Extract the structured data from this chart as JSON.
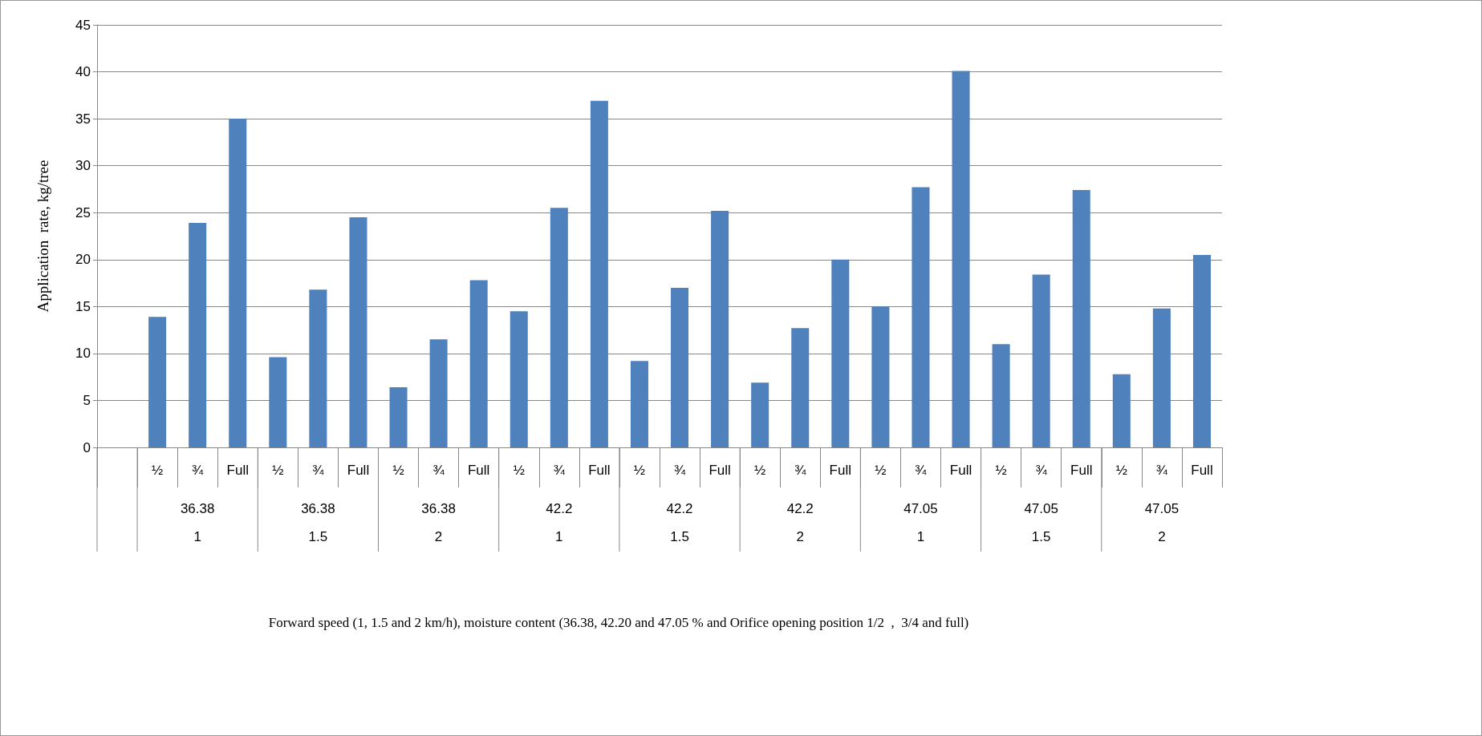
{
  "chart_data": {
    "type": "bar",
    "ylabel": "Application  rate, kg/tree",
    "categories": [
      null,
      "½",
      "¾",
      "Full",
      "½",
      "¾",
      "Full",
      "½",
      "¾",
      "Full",
      "½",
      "¾",
      "Full",
      "½",
      "¾",
      "Full",
      "½",
      "¾",
      "Full",
      "½",
      "¾",
      "Full",
      "½",
      "¾",
      "Full",
      "½",
      "¾",
      "Full"
    ],
    "values": [
      null,
      13.9,
      23.9,
      35,
      9.6,
      16.8,
      24.5,
      6.4,
      11.5,
      17.8,
      14.5,
      25.5,
      36.9,
      9.2,
      17.0,
      25.2,
      6.9,
      12.7,
      20.0,
      15.0,
      27.7,
      40.1,
      11.0,
      18.4,
      27.4,
      7.8,
      14.8,
      20.5
    ],
    "color": "#4f81bd",
    "annotations": [
      "36.38",
      "36.38",
      "36.38",
      "42.2",
      "42.2",
      "42.2",
      "47.05",
      "47.05",
      "47.05",
      "1",
      "1.5",
      "2",
      "1",
      "1.5",
      "2",
      "1",
      "1.5",
      "2",
      "Forward speed (1, 1.5 and 2 km/h), moisture content (36.38, 42.20 and 47.05 % and Orifice opening position 1/2  ,  3/4 and full)"
    ],
    "ylim": [
      0,
      45
    ],
    "yticks": [
      0,
      5,
      10,
      15,
      20,
      25,
      30,
      35,
      40,
      45
    ],
    "grid": "y"
  }
}
